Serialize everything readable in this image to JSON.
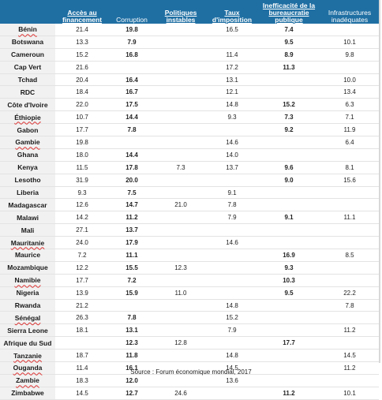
{
  "headers": [
    "",
    "Accès au financement",
    "Corruption",
    "Politiques instables",
    "Taux d'imposition",
    "Inefficacité de la bureaucratie publique",
    "Infrastructures inadéquates"
  ],
  "rows": [
    {
      "country": "Bénin",
      "values": [
        "21.4",
        "19.8",
        "",
        "16.5",
        "7.4",
        ""
      ]
    },
    {
      "country": "Botswana",
      "values": [
        "13.3",
        "7.9",
        "",
        "",
        "9.5",
        "10.1"
      ]
    },
    {
      "country": "Cameroun",
      "values": [
        "15.2",
        "16.8",
        "",
        "11.4",
        "8.9",
        "9.8"
      ]
    },
    {
      "country": "Cap Vert",
      "values": [
        "21.6",
        "",
        "",
        "17.2",
        "11.3",
        ""
      ]
    },
    {
      "country": "Tchad",
      "values": [
        "20.4",
        "16.4",
        "",
        "13.1",
        "",
        "10.0"
      ]
    },
    {
      "country": "RDC",
      "values": [
        "18.4",
        "16.7",
        "",
        "12.1",
        "",
        "13.4"
      ]
    },
    {
      "country": "Côte d'Ivoire",
      "values": [
        "22.0",
        "17.5",
        "",
        "14.8",
        "15.2",
        "6.3"
      ]
    },
    {
      "country": "Éthiopie",
      "values": [
        "10.7",
        "14.4",
        "",
        "9.3",
        "7.3",
        "7.1"
      ]
    },
    {
      "country": "Gabon",
      "values": [
        "17.7",
        "7.8",
        "",
        "",
        "9.2",
        "11.9"
      ]
    },
    {
      "country": "Gambie",
      "values": [
        "19.8",
        "",
        "",
        "14.6",
        "",
        "6.4"
      ]
    },
    {
      "country": "Ghana",
      "values": [
        "18.0",
        "14.4",
        "",
        "14.0",
        "",
        ""
      ]
    },
    {
      "country": "Kenya",
      "values": [
        "11.5",
        "17.8",
        "7.3",
        "13.7",
        "9.6",
        "8.1"
      ]
    },
    {
      "country": "Lesotho",
      "values": [
        "31.9",
        "20.0",
        "",
        "",
        "9.0",
        "15.6"
      ]
    },
    {
      "country": "Liberia",
      "values": [
        "9.3",
        "7.5",
        "",
        "9.1",
        "",
        ""
      ]
    },
    {
      "country": "Madagascar",
      "values": [
        "12.6",
        "14.7",
        "21.0",
        "7.8",
        "",
        ""
      ]
    },
    {
      "country": "Malawi",
      "values": [
        "14.2",
        "11.2",
        "",
        "7.9",
        "9.1",
        "11.1"
      ]
    },
    {
      "country": "Mali",
      "values": [
        "27.1",
        "13.7",
        "",
        "",
        "",
        ""
      ]
    },
    {
      "country": "Mauritanie",
      "values": [
        "24.0",
        "17.9",
        "",
        "14.6",
        "",
        ""
      ]
    },
    {
      "country": "Maurice",
      "values": [
        "7.2",
        "11.1",
        "",
        "",
        "16.9",
        "8.5"
      ]
    },
    {
      "country": "Mozambique",
      "values": [
        "12.2",
        "15.5",
        "12.3",
        "",
        "9.3",
        ""
      ]
    },
    {
      "country": "Namibie",
      "values": [
        "17.7",
        "7.2",
        "",
        "",
        "10.3",
        ""
      ]
    },
    {
      "country": "Nigeria",
      "values": [
        "13.9",
        "15.9",
        "11.0",
        "",
        "9.5",
        "22.2"
      ]
    },
    {
      "country": "Rwanda",
      "values": [
        "21.2",
        "",
        "",
        "14.8",
        "",
        "7.8"
      ]
    },
    {
      "country": "Sénégal",
      "values": [
        "26.3",
        "7.8",
        "",
        "15.2",
        "",
        ""
      ]
    },
    {
      "country": "Sierra Leone",
      "values": [
        "18.1",
        "13.1",
        "",
        "7.9",
        "",
        "11.2"
      ]
    },
    {
      "country": "Afrique du Sud",
      "values": [
        "",
        "12.3",
        "12.8",
        "",
        "17.7",
        ""
      ]
    },
    {
      "country": "Tanzanie",
      "values": [
        "18.7",
        "11.8",
        "",
        "14.8",
        "",
        "14.5"
      ]
    },
    {
      "country": "Ouganda",
      "values": [
        "11.4",
        "16.1",
        "",
        "14.5",
        "",
        "11.2"
      ]
    },
    {
      "country": "Zambie",
      "values": [
        "18.3",
        "12.0",
        "",
        "13.6",
        "",
        ""
      ]
    },
    {
      "country": "Zimbabwe",
      "values": [
        "14.5",
        "12.7",
        "24.6",
        "",
        "11.2",
        "10.1"
      ]
    }
  ],
  "source": "Source : Forum économique mondial, 2017"
}
